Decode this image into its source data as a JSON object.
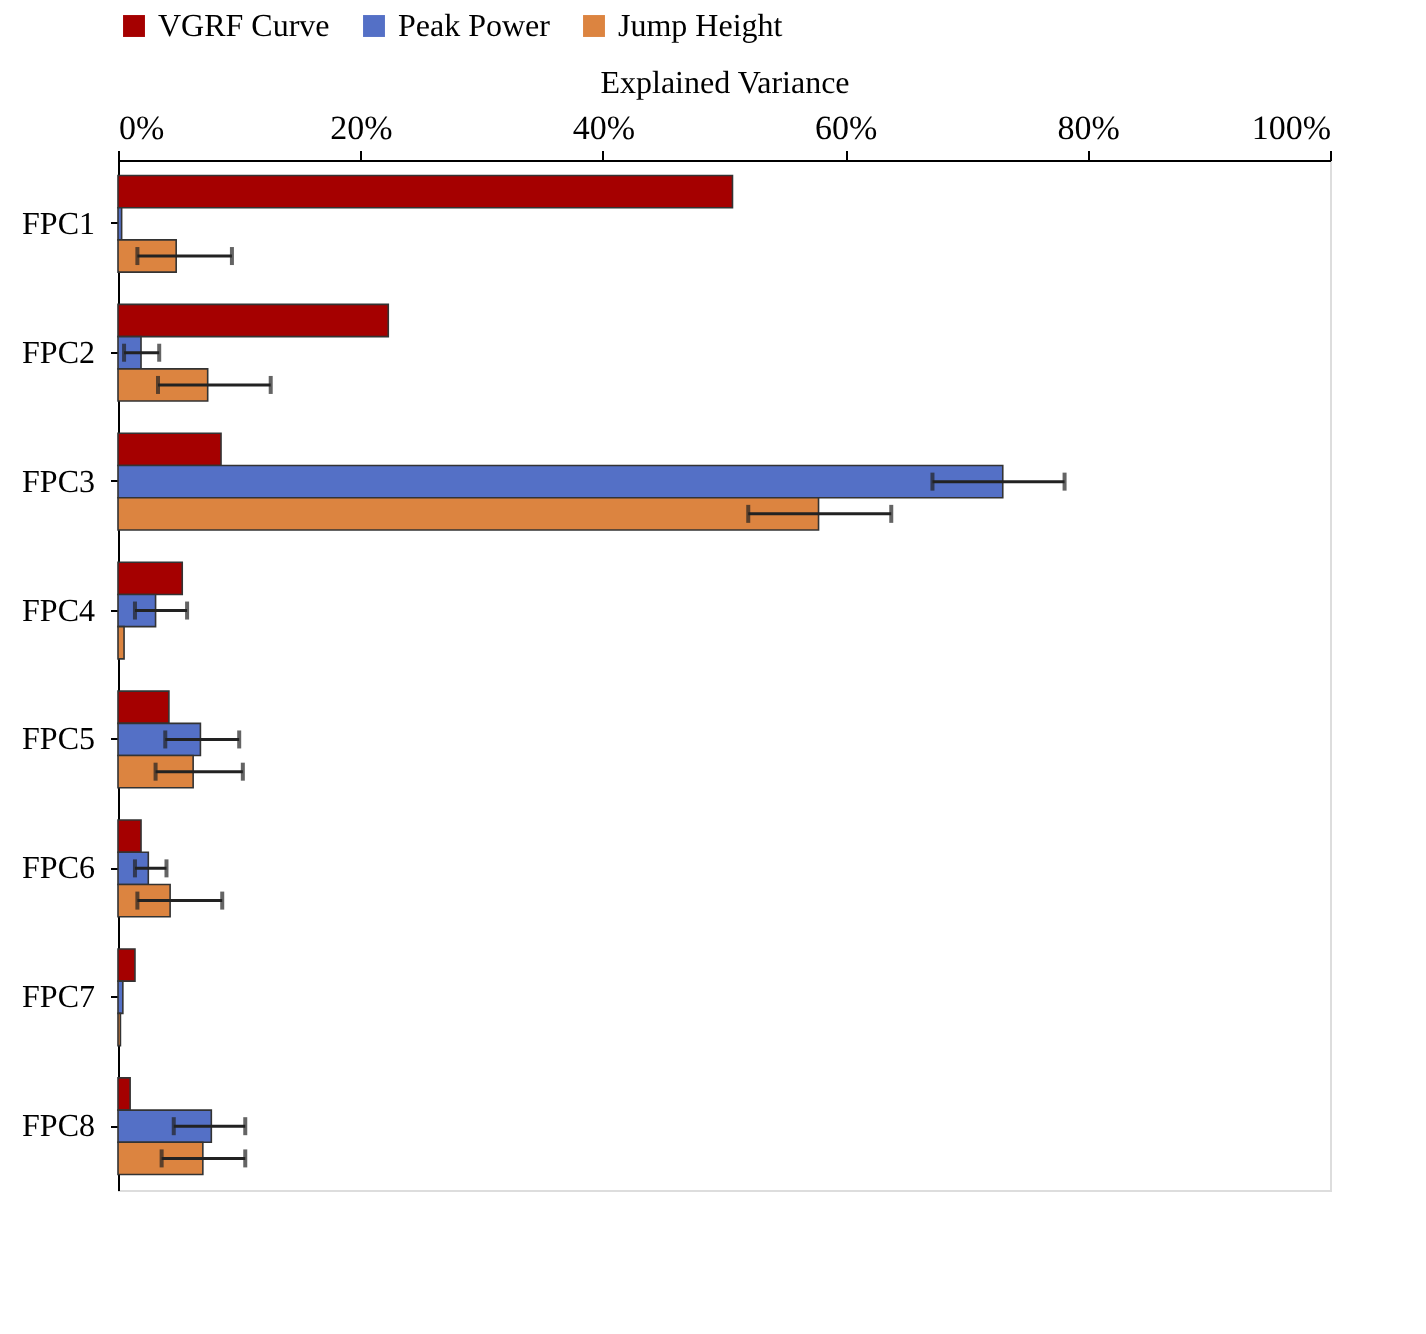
{
  "chart_data": {
    "type": "bar",
    "orientation": "horizontal",
    "xlabel": "Explained Variance",
    "legend": "top",
    "categories": [
      "FPC1",
      "FPC2",
      "FPC3",
      "FPC4",
      "FPC5",
      "FPC6",
      "FPC7",
      "FPC8"
    ],
    "xlim": [
      0,
      100
    ],
    "xticks": [
      {
        "value": 0,
        "label": "0%"
      },
      {
        "value": 20,
        "label": "20%"
      },
      {
        "value": 40,
        "label": "40%"
      },
      {
        "value": 60,
        "label": "60%"
      },
      {
        "value": 80,
        "label": "80%"
      },
      {
        "value": 100,
        "label": "100%"
      }
    ],
    "grid": false,
    "series": [
      {
        "name": "VGRF Curve",
        "color": "#a50000",
        "values": [
          50.7,
          22.3,
          8.5,
          5.3,
          4.2,
          1.9,
          1.4,
          1.0
        ]
      },
      {
        "name": "Peak Power",
        "color": "#5470c6",
        "values": [
          0.3,
          1.9,
          73.0,
          3.1,
          6.8,
          2.5,
          0.4,
          7.7
        ],
        "errors": [
          null,
          [
            0.5,
            3.4
          ],
          [
            67.2,
            78.1
          ],
          [
            1.4,
            5.7
          ],
          [
            3.9,
            10.0
          ],
          [
            1.4,
            4.0
          ],
          null,
          [
            4.6,
            10.5
          ]
        ]
      },
      {
        "name": "Jump Height",
        "color": "#dc8440",
        "values": [
          4.8,
          7.4,
          57.8,
          0.5,
          6.2,
          4.3,
          0.2,
          7.0
        ],
        "errors": [
          [
            1.6,
            9.4
          ],
          [
            3.3,
            12.6
          ],
          [
            52.0,
            63.8
          ],
          null,
          [
            3.1,
            10.3
          ],
          [
            1.6,
            8.6
          ],
          null,
          [
            3.6,
            10.5
          ]
        ]
      }
    ]
  }
}
